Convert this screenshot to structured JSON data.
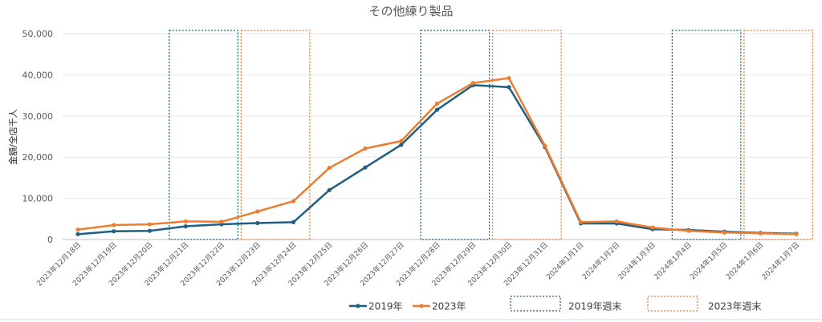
{
  "chart_data": {
    "type": "line",
    "title": "その他練り製品",
    "ylabel": "金額/全店千人",
    "xlabel": "",
    "ylim": [
      0,
      50000
    ],
    "yticks": [
      "0",
      "10,000",
      "20,000",
      "30,000",
      "40,000",
      "50,000"
    ],
    "grid": true,
    "legend_position": "bottom",
    "categories": [
      "2023年12月18日",
      "2023年12月19日",
      "2023年12月20日",
      "2023年12月21日",
      "2023年12月22日",
      "2023年12月23日",
      "2023年12月24日",
      "2023年12月25日",
      "2023年12月26日",
      "2023年12月27日",
      "2023年12月28日",
      "2023年12月29日",
      "2023年12月30日",
      "2023年12月31日",
      "2024年1月1日",
      "2024年1月2日",
      "2024年1月3日",
      "2024年1月4日",
      "2024年1月5日",
      "2024年1月6日",
      "2024年1月7日"
    ],
    "series": [
      {
        "name": "2019年",
        "color": "#1f5f7f",
        "values": [
          1300,
          2000,
          2100,
          3200,
          3700,
          4000,
          4200,
          12000,
          17500,
          23000,
          31500,
          37500,
          37000,
          22500,
          3900,
          3900,
          2500,
          2300,
          1900,
          1600,
          1400
        ]
      },
      {
        "name": "2023年",
        "color": "#ed7d31",
        "values": [
          2400,
          3500,
          3700,
          4400,
          4300,
          6800,
          9300,
          17400,
          22100,
          23900,
          33000,
          38000,
          39200,
          22800,
          4200,
          4400,
          2900,
          2100,
          1700,
          1500,
          1300
        ]
      }
    ],
    "weekend_boxes": [
      {
        "name": "2019年週末",
        "color": "#1f5f7f",
        "ranges": [
          [
            "2023年12月21日",
            "2023年12月22日"
          ],
          [
            "2023年12月28日",
            "2023年12月29日"
          ],
          [
            "2024年1月4日",
            "2024年1月5日"
          ]
        ]
      },
      {
        "name": "2023年週末",
        "color": "#ed7d31",
        "ranges": [
          [
            "2023年12月23日",
            "2023年12月24日"
          ],
          [
            "2023年12月30日",
            "2023年12月31日"
          ],
          [
            "2024年1月6日",
            "2024年1月7日"
          ]
        ]
      }
    ]
  }
}
